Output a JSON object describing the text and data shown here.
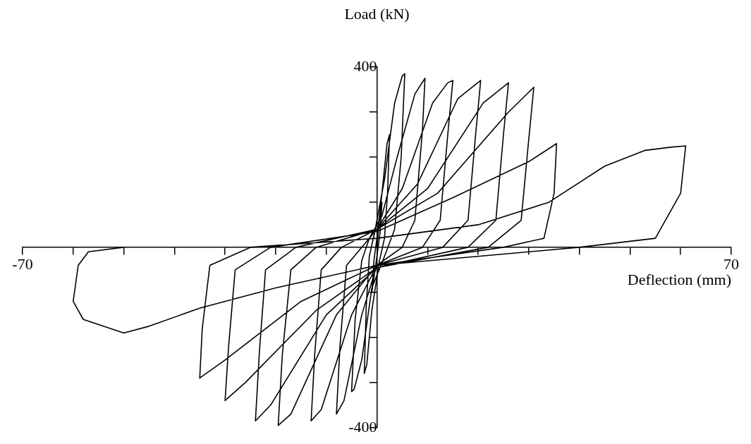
{
  "chart_data": {
    "type": "line",
    "xlabel": "Deflection (mm)",
    "ylabel": "Load (kN)",
    "xlim": [
      -70,
      70
    ],
    "xticks": [
      -70,
      {
        "value": -60,
        "label": null
      },
      {
        "value": -50,
        "label": null
      },
      {
        "value": -40,
        "label": null
      },
      {
        "value": -30,
        "label": null
      },
      {
        "value": -20,
        "label": null
      },
      {
        "value": -10,
        "label": null
      },
      {
        "value": 10,
        "label": null
      },
      {
        "value": 20,
        "label": null
      },
      {
        "value": 30,
        "label": null
      },
      {
        "value": 40,
        "label": null
      },
      {
        "value": 50,
        "label": null
      },
      {
        "value": 60,
        "label": null
      },
      70
    ],
    "ylim": [
      -400,
      400
    ],
    "yticks": [
      -400,
      {
        "value": -300,
        "label": null
      },
      {
        "value": -200,
        "label": null
      },
      {
        "value": -100,
        "label": null
      },
      {
        "value": 100,
        "label": null
      },
      {
        "value": 200,
        "label": null
      },
      {
        "value": 300,
        "label": null
      },
      400
    ],
    "marker": "none",
    "line_style": "solid",
    "series": [
      {
        "color": "#000000",
        "x": [
          0,
          0.5,
          1,
          0.6,
          0,
          -0.5,
          -1,
          -0.6,
          0,
          1,
          2,
          2.5,
          2.1,
          1.5,
          0.5,
          -1,
          -2,
          -2.5,
          -2.1,
          -1.5,
          -0.5,
          1.5,
          3.5,
          5,
          5.5,
          4.8,
          3.5,
          1.5,
          -1,
          -3,
          -4.5,
          -5,
          -4.3,
          -3,
          -1.5,
          1,
          4,
          7.5,
          9.5,
          9,
          7.5,
          5,
          0,
          -3,
          -6.5,
          -8,
          -7.3,
          -6,
          -3,
          0,
          5,
          11,
          14,
          15,
          14,
          12.5,
          9,
          0,
          -5,
          -11,
          -13,
          -12.3,
          -11,
          -7,
          0,
          8,
          16,
          20.5,
          19.5,
          18,
          13,
          0,
          -8,
          -17,
          -19.5,
          -18.7,
          -17,
          -12,
          0,
          10,
          21,
          26,
          25,
          23.5,
          18,
          0,
          -10,
          -21,
          -24,
          -23.2,
          -22,
          -16,
          0,
          12,
          26,
          31,
          30,
          28.5,
          22,
          0,
          -12,
          -26,
          -30,
          -29.3,
          -28,
          -21,
          0,
          15,
          30,
          35.5,
          35,
          33,
          25,
          0,
          -15,
          -30,
          -35,
          -34.5,
          -33,
          -25,
          0,
          20,
          34,
          45,
          53,
          58,
          61,
          60,
          55,
          40,
          25,
          0,
          -20,
          -35,
          -45,
          -50,
          -58,
          -60,
          -59,
          -57,
          -50
        ],
        "values": [
          0,
          60,
          100,
          30,
          -20,
          -60,
          -100,
          -30,
          20,
          120,
          230,
          250,
          120,
          20,
          -30,
          -140,
          -260,
          -280,
          -130,
          -20,
          30,
          150,
          320,
          380,
          385,
          200,
          40,
          -20,
          -90,
          -250,
          -315,
          -320,
          -160,
          -30,
          20,
          70,
          200,
          340,
          375,
          260,
          60,
          0,
          -40,
          -150,
          -340,
          -370,
          -220,
          -40,
          0,
          40,
          130,
          320,
          365,
          370,
          250,
          60,
          0,
          -40,
          -150,
          -360,
          -385,
          -240,
          -50,
          0,
          40,
          140,
          330,
          370,
          250,
          60,
          0,
          -40,
          -150,
          -370,
          -395,
          -240,
          -50,
          0,
          40,
          130,
          320,
          365,
          250,
          60,
          0,
          -45,
          -150,
          -350,
          -385,
          -230,
          -50,
          0,
          40,
          120,
          300,
          355,
          240,
          60,
          0,
          -45,
          -140,
          -300,
          -340,
          -220,
          -50,
          0,
          35,
          110,
          190,
          230,
          120,
          20,
          0,
          -40,
          -120,
          -250,
          -290,
          -180,
          -40,
          0,
          20,
          50,
          100,
          180,
          215,
          222,
          225,
          120,
          20,
          0,
          -15,
          -40,
          -90,
          -135,
          -175,
          -190,
          -160,
          -120,
          -40,
          -10,
          0
        ]
      }
    ]
  }
}
